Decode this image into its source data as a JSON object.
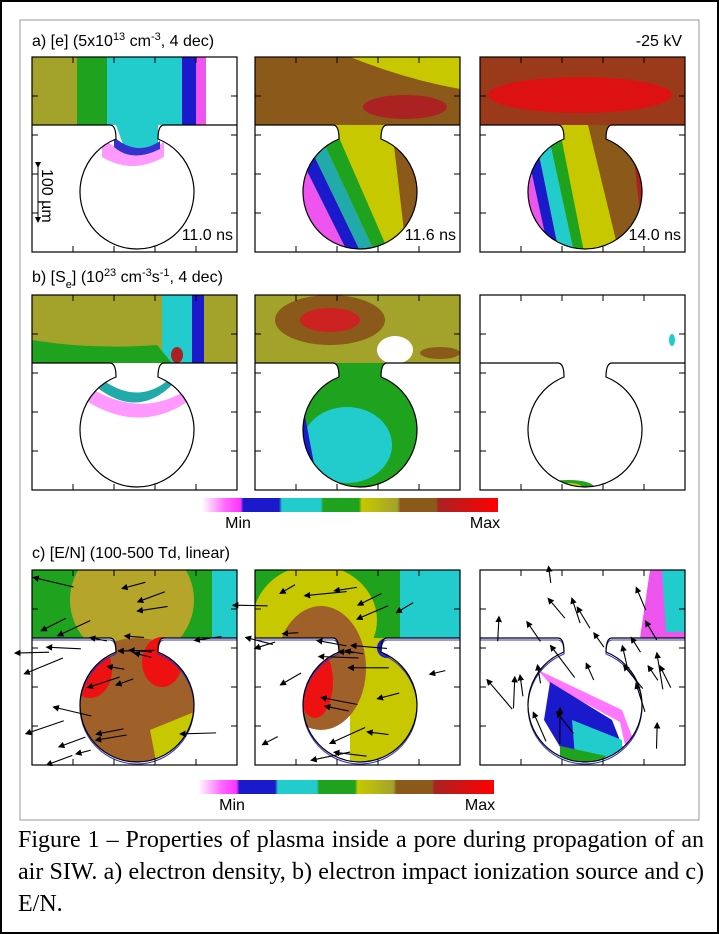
{
  "panels": [
    {
      "label_parts": [
        "a) [e] (5x10",
        "13",
        " cm",
        "-3",
        ", 4 dec)"
      ],
      "voltage": "-25 kV",
      "scale_bar": "100 µm",
      "times": [
        "11.0 ns",
        "11.6 ns",
        "14.0 ns"
      ]
    },
    {
      "label_parts": [
        "b) [S",
        "e",
        "] (10",
        "23",
        " cm",
        "-3",
        "s",
        "-1",
        ", 4 dec)"
      ],
      "colorbar": {
        "min": "Min",
        "max": "Max"
      }
    },
    {
      "label_parts": [
        "c) [E/N] (100-500 Td, linear)"
      ],
      "colorbar": {
        "min": "Min",
        "max": "Max"
      }
    }
  ],
  "caption": "Figure 1 – Properties of plasma inside a pore during propagation of an air SIW. a) electron density, b) electron impact ionization source and c) E/N."
}
